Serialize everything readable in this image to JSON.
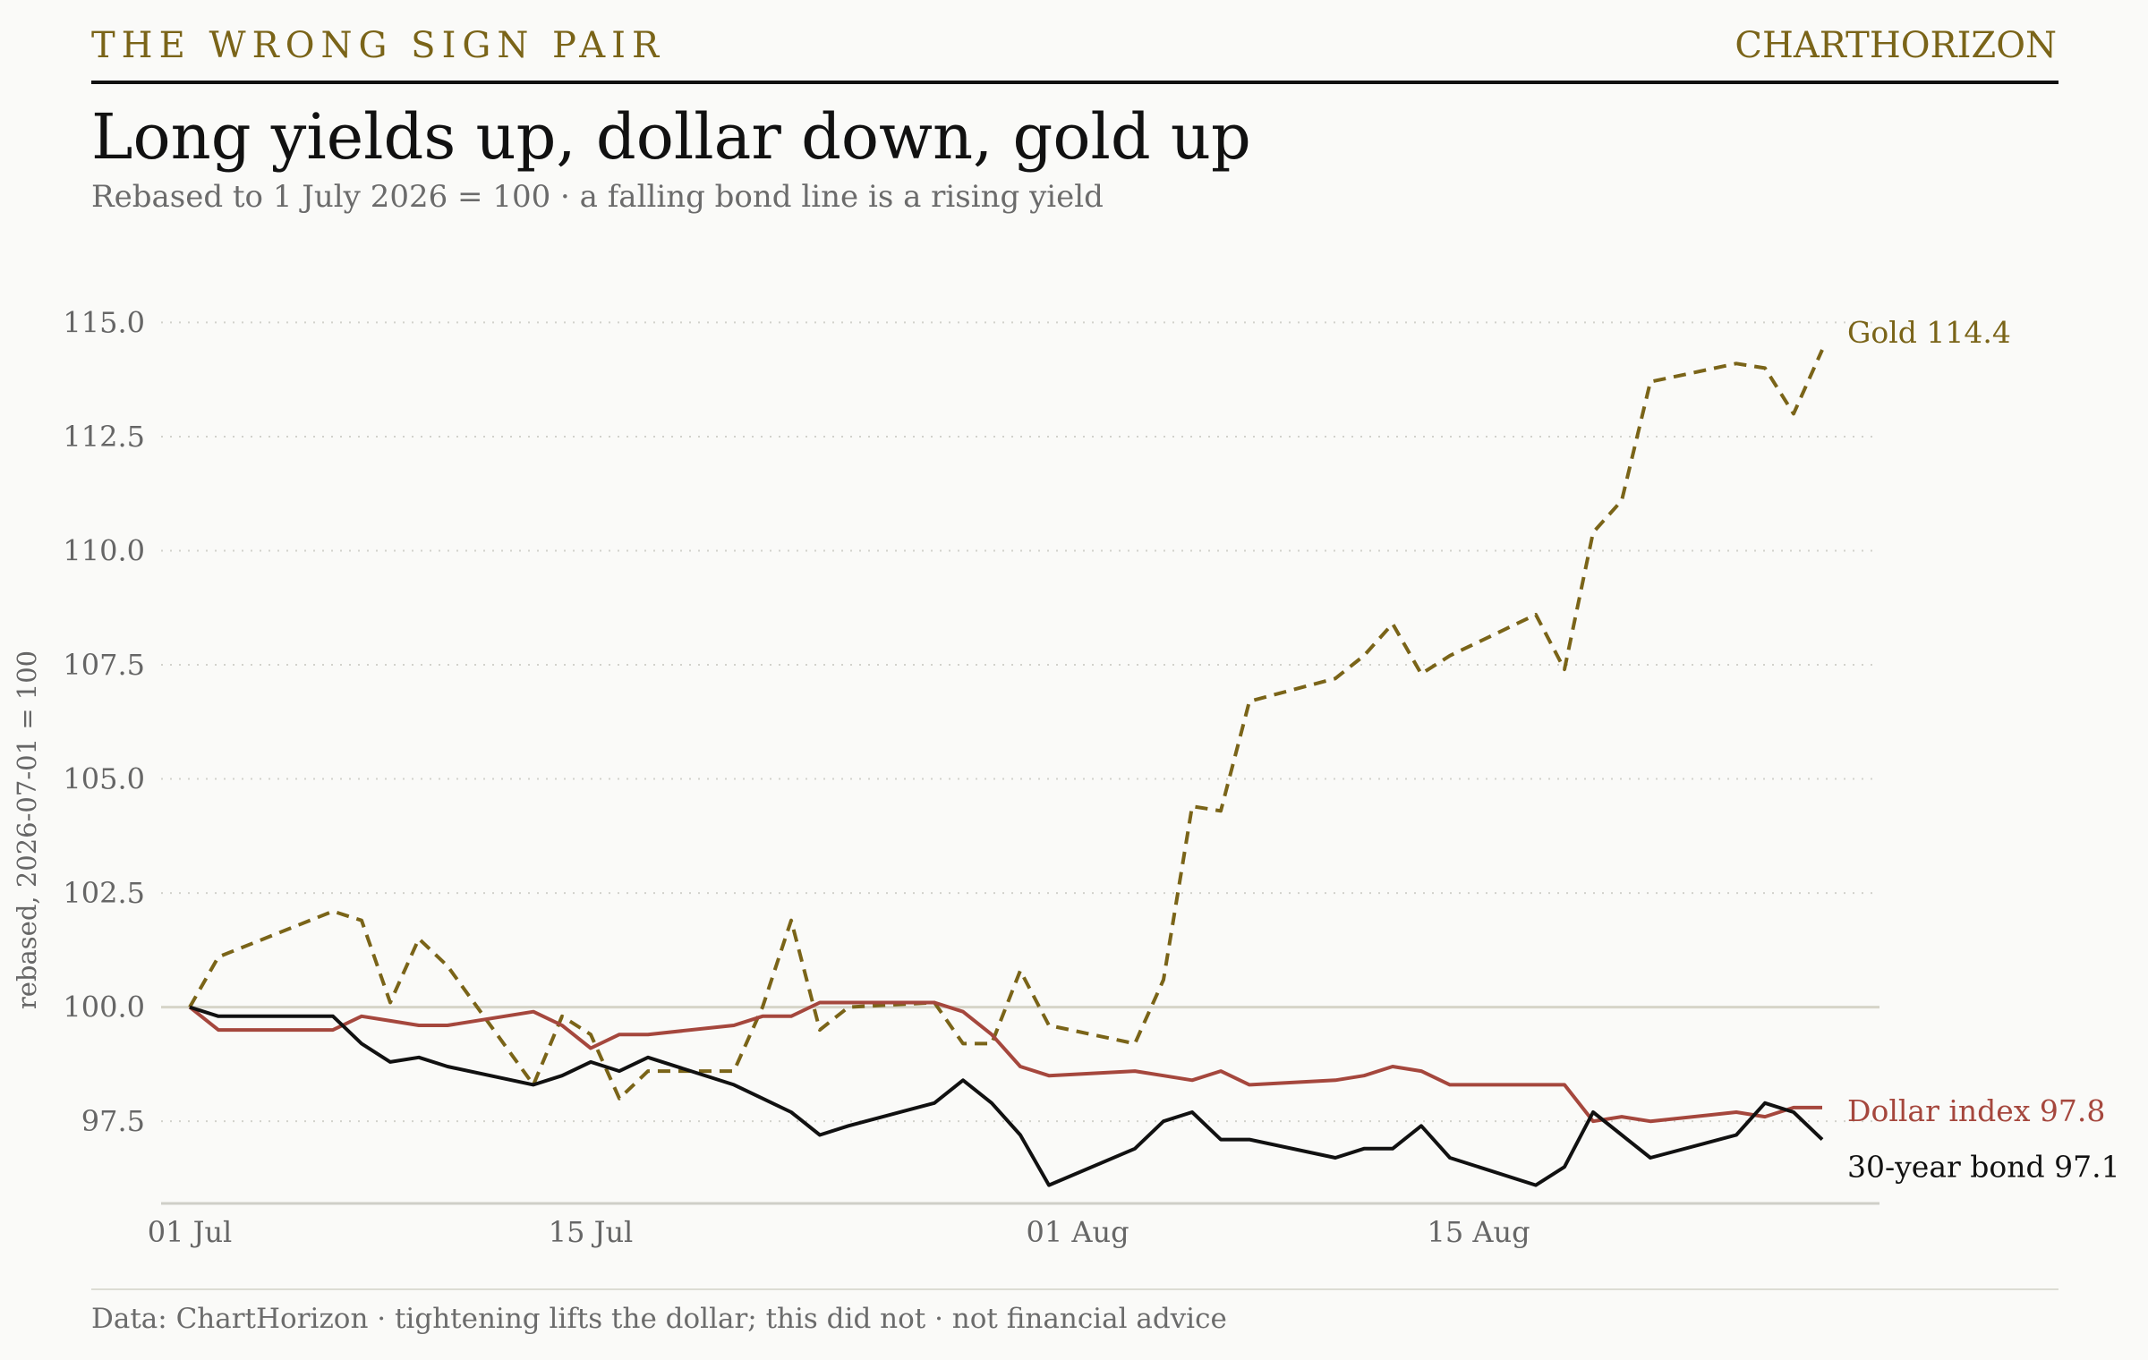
{
  "header": {
    "kicker": "THE WRONG SIGN PAIR",
    "brand": "CHARTHORIZON",
    "title": "Long yields up, dollar down, gold up",
    "subtitle": "Rebased to 1 July 2026 = 100 · a falling bond line is a rising yield"
  },
  "footer": {
    "source": "Data: ChartHorizon · tightening lifts the dollar; this did not · not financial advice"
  },
  "colors": {
    "gold": "#7a6418",
    "dollar": "#a5473d",
    "bond": "#111111",
    "grid": "#d2d2cc",
    "baseline": "#d6d4c8",
    "axis": "#cfcfc8"
  },
  "chart_data": {
    "type": "line",
    "title": "Long yields up, dollar down, gold up",
    "subtitle": "Rebased to 1 July 2026 = 100 · a falling bond line is a rising yield",
    "xlabel": "",
    "ylabel": "rebased, 2026-07-01 = 100",
    "ylim": [
      95.7,
      115.4
    ],
    "xlim": [
      "2026-06-30",
      "2026-08-29"
    ],
    "yticks": [
      97.5,
      100.0,
      102.5,
      105.0,
      107.5,
      110.0,
      112.5,
      115.0
    ],
    "ytick_labels": [
      "97.5",
      "100.0",
      "102.5",
      "105.0",
      "107.5",
      "110.0",
      "112.5",
      "115.0"
    ],
    "xticks": [
      "2026-07-01",
      "2026-07-15",
      "2026-08-01",
      "2026-08-15"
    ],
    "xtick_labels": [
      "01 Jul",
      "15 Jul",
      "01 Aug",
      "15 Aug"
    ],
    "reference_line": 100.0,
    "grid": "horizontal dotted",
    "legend": "direct labels at line ends",
    "series": [
      {
        "name": "Gold",
        "end_label": "Gold  114.4",
        "style": "dashed",
        "color": "#7a6418",
        "points": [
          [
            "2026-07-01",
            100.0
          ],
          [
            "2026-07-02",
            101.1
          ],
          [
            "2026-07-06",
            102.1
          ],
          [
            "2026-07-07",
            101.9
          ],
          [
            "2026-07-08",
            100.1
          ],
          [
            "2026-07-09",
            101.5
          ],
          [
            "2026-07-10",
            100.9
          ],
          [
            "2026-07-13",
            98.3
          ],
          [
            "2026-07-14",
            99.8
          ],
          [
            "2026-07-15",
            99.4
          ],
          [
            "2026-07-16",
            98.0
          ],
          [
            "2026-07-17",
            98.6
          ],
          [
            "2026-07-20",
            98.6
          ],
          [
            "2026-07-21",
            100.0
          ],
          [
            "2026-07-22",
            101.9
          ],
          [
            "2026-07-23",
            99.5
          ],
          [
            "2026-07-24",
            100.0
          ],
          [
            "2026-07-27",
            100.1
          ],
          [
            "2026-07-28",
            99.2
          ],
          [
            "2026-07-29",
            99.2
          ],
          [
            "2026-07-30",
            100.8
          ],
          [
            "2026-07-31",
            99.6
          ],
          [
            "2026-08-03",
            99.2
          ],
          [
            "2026-08-04",
            100.6
          ],
          [
            "2026-08-05",
            104.4
          ],
          [
            "2026-08-06",
            104.3
          ],
          [
            "2026-08-07",
            106.7
          ],
          [
            "2026-08-10",
            107.2
          ],
          [
            "2026-08-11",
            107.7
          ],
          [
            "2026-08-12",
            108.4
          ],
          [
            "2026-08-13",
            107.3
          ],
          [
            "2026-08-14",
            107.7
          ],
          [
            "2026-08-17",
            108.6
          ],
          [
            "2026-08-18",
            107.4
          ],
          [
            "2026-08-19",
            110.4
          ],
          [
            "2026-08-20",
            111.1
          ],
          [
            "2026-08-21",
            113.7
          ],
          [
            "2026-08-24",
            114.1
          ],
          [
            "2026-08-25",
            114.0
          ],
          [
            "2026-08-26",
            113.0
          ],
          [
            "2026-08-27",
            114.4
          ]
        ]
      },
      {
        "name": "Dollar index",
        "end_label": "Dollar index  97.8",
        "style": "solid",
        "color": "#a5473d",
        "points": [
          [
            "2026-07-01",
            100.0
          ],
          [
            "2026-07-02",
            99.5
          ],
          [
            "2026-07-06",
            99.5
          ],
          [
            "2026-07-07",
            99.8
          ],
          [
            "2026-07-08",
            99.7
          ],
          [
            "2026-07-09",
            99.6
          ],
          [
            "2026-07-10",
            99.6
          ],
          [
            "2026-07-13",
            99.9
          ],
          [
            "2026-07-14",
            99.6
          ],
          [
            "2026-07-15",
            99.1
          ],
          [
            "2026-07-16",
            99.4
          ],
          [
            "2026-07-17",
            99.4
          ],
          [
            "2026-07-20",
            99.6
          ],
          [
            "2026-07-21",
            99.8
          ],
          [
            "2026-07-22",
            99.8
          ],
          [
            "2026-07-23",
            100.1
          ],
          [
            "2026-07-24",
            100.1
          ],
          [
            "2026-07-27",
            100.1
          ],
          [
            "2026-07-28",
            99.9
          ],
          [
            "2026-07-29",
            99.4
          ],
          [
            "2026-07-30",
            98.7
          ],
          [
            "2026-07-31",
            98.5
          ],
          [
            "2026-08-03",
            98.6
          ],
          [
            "2026-08-04",
            98.5
          ],
          [
            "2026-08-05",
            98.4
          ],
          [
            "2026-08-06",
            98.6
          ],
          [
            "2026-08-07",
            98.3
          ],
          [
            "2026-08-10",
            98.4
          ],
          [
            "2026-08-11",
            98.5
          ],
          [
            "2026-08-12",
            98.7
          ],
          [
            "2026-08-13",
            98.6
          ],
          [
            "2026-08-14",
            98.3
          ],
          [
            "2026-08-17",
            98.3
          ],
          [
            "2026-08-18",
            98.3
          ],
          [
            "2026-08-19",
            97.5
          ],
          [
            "2026-08-20",
            97.6
          ],
          [
            "2026-08-21",
            97.5
          ],
          [
            "2026-08-24",
            97.7
          ],
          [
            "2026-08-25",
            97.6
          ],
          [
            "2026-08-26",
            97.8
          ],
          [
            "2026-08-27",
            97.8
          ]
        ]
      },
      {
        "name": "30-year bond",
        "end_label": "30-year bond  97.1",
        "style": "solid",
        "color": "#111111",
        "points": [
          [
            "2026-07-01",
            100.0
          ],
          [
            "2026-07-02",
            99.8
          ],
          [
            "2026-07-06",
            99.8
          ],
          [
            "2026-07-07",
            99.2
          ],
          [
            "2026-07-08",
            98.8
          ],
          [
            "2026-07-09",
            98.9
          ],
          [
            "2026-07-10",
            98.7
          ],
          [
            "2026-07-13",
            98.3
          ],
          [
            "2026-07-14",
            98.5
          ],
          [
            "2026-07-15",
            98.8
          ],
          [
            "2026-07-16",
            98.6
          ],
          [
            "2026-07-17",
            98.9
          ],
          [
            "2026-07-20",
            98.3
          ],
          [
            "2026-07-21",
            98.0
          ],
          [
            "2026-07-22",
            97.7
          ],
          [
            "2026-07-23",
            97.2
          ],
          [
            "2026-07-24",
            97.4
          ],
          [
            "2026-07-27",
            97.9
          ],
          [
            "2026-07-28",
            98.4
          ],
          [
            "2026-07-29",
            97.9
          ],
          [
            "2026-07-30",
            97.2
          ],
          [
            "2026-07-31",
            96.1
          ],
          [
            "2026-08-03",
            96.9
          ],
          [
            "2026-08-04",
            97.5
          ],
          [
            "2026-08-05",
            97.7
          ],
          [
            "2026-08-06",
            97.1
          ],
          [
            "2026-08-07",
            97.1
          ],
          [
            "2026-08-10",
            96.7
          ],
          [
            "2026-08-11",
            96.9
          ],
          [
            "2026-08-12",
            96.9
          ],
          [
            "2026-08-13",
            97.4
          ],
          [
            "2026-08-14",
            96.7
          ],
          [
            "2026-08-17",
            96.1
          ],
          [
            "2026-08-18",
            96.5
          ],
          [
            "2026-08-19",
            97.7
          ],
          [
            "2026-08-20",
            97.2
          ],
          [
            "2026-08-21",
            96.7
          ],
          [
            "2026-08-24",
            97.2
          ],
          [
            "2026-08-25",
            97.9
          ],
          [
            "2026-08-26",
            97.7
          ],
          [
            "2026-08-27",
            97.1
          ]
        ]
      }
    ]
  }
}
